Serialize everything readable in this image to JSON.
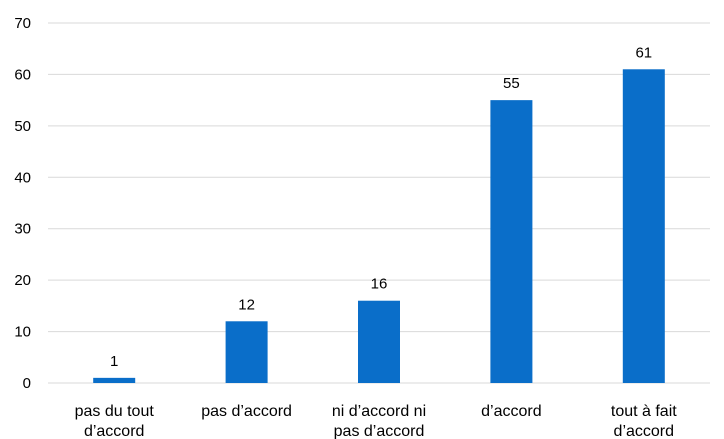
{
  "chart_data": {
    "type": "bar",
    "categories": [
      [
        "pas du tout",
        "d’accord"
      ],
      [
        "pas d’accord"
      ],
      [
        "ni d’accord ni",
        "pas d’accord"
      ],
      [
        "d’accord"
      ],
      [
        "tout à fait",
        "d’accord"
      ]
    ],
    "values": [
      1,
      12,
      16,
      55,
      61
    ],
    "title": "",
    "xlabel": "",
    "ylabel": "",
    "ylim": [
      0,
      70
    ],
    "yticks": [
      0,
      10,
      20,
      30,
      40,
      50,
      60,
      70
    ],
    "grid": true,
    "bar_color": "#0a6ec9"
  }
}
